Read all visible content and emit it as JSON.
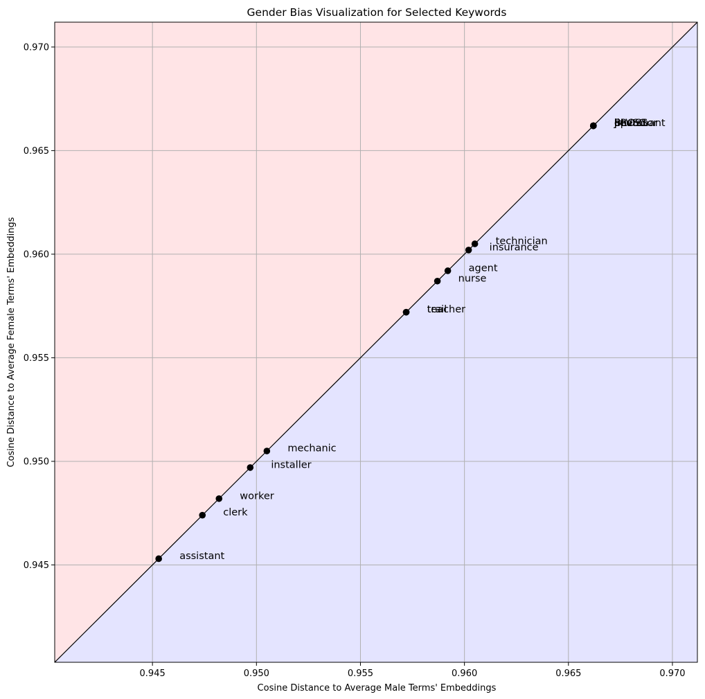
{
  "chart_data": {
    "type": "scatter",
    "title": "Gender Bias Visualization for Selected Keywords",
    "xlabel": "Cosine Distance to Average Male Terms' Embeddings",
    "ylabel": "Cosine Distance to Average Female Terms' Embeddings",
    "xlim": [
      0.9403,
      0.9712
    ],
    "ylim": [
      0.9403,
      0.9712
    ],
    "xticks": [
      0.945,
      0.95,
      0.955,
      0.96,
      0.965,
      0.97
    ],
    "yticks": [
      0.945,
      0.95,
      0.955,
      0.96,
      0.965,
      0.97
    ],
    "xtick_labels": [
      "0.945",
      "0.950",
      "0.955",
      "0.960",
      "0.965",
      "0.970"
    ],
    "ytick_labels": [
      "0.945",
      "0.950",
      "0.955",
      "0.960",
      "0.965",
      "0.970"
    ],
    "grid": true,
    "reference_line": "y = x",
    "regions": {
      "above_diagonal": "#ffe4e6",
      "below_diagonal": "#e4e4ff"
    },
    "points": [
      {
        "label": "assistant",
        "x": 0.9453,
        "y": 0.9453
      },
      {
        "label": "clerk",
        "x": 0.9474,
        "y": 0.9474
      },
      {
        "label": "worker",
        "x": 0.9482,
        "y": 0.9482
      },
      {
        "label": "installer",
        "x": 0.9497,
        "y": 0.9497
      },
      {
        "label": "mechanic",
        "x": 0.9505,
        "y": 0.9505
      },
      {
        "label": "teacher",
        "x": 0.9572,
        "y": 0.9572
      },
      {
        "label": "trail",
        "x": 0.9572,
        "y": 0.9572
      },
      {
        "label": "nurse",
        "x": 0.9587,
        "y": 0.9587
      },
      {
        "label": "agent",
        "x": 0.9592,
        "y": 0.9592
      },
      {
        "label": "insurance",
        "x": 0.9602,
        "y": 0.9602
      },
      {
        "label": "technician",
        "x": 0.9605,
        "y": 0.9605
      },
      {
        "label": "Jr",
        "x": 0.9662,
        "y": 0.9662
      },
      {
        "label": "PROSS",
        "x": 0.9662,
        "y": 0.9662
      },
      {
        "label": "BLVSC",
        "x": 0.9662,
        "y": 0.9662
      },
      {
        "label": "lieutenant",
        "x": 0.9662,
        "y": 0.9662
      },
      {
        "label": "pr",
        "x": 0.9662,
        "y": 0.9662
      },
      {
        "label": "operator",
        "x": 0.9662,
        "y": 0.9662
      }
    ]
  }
}
